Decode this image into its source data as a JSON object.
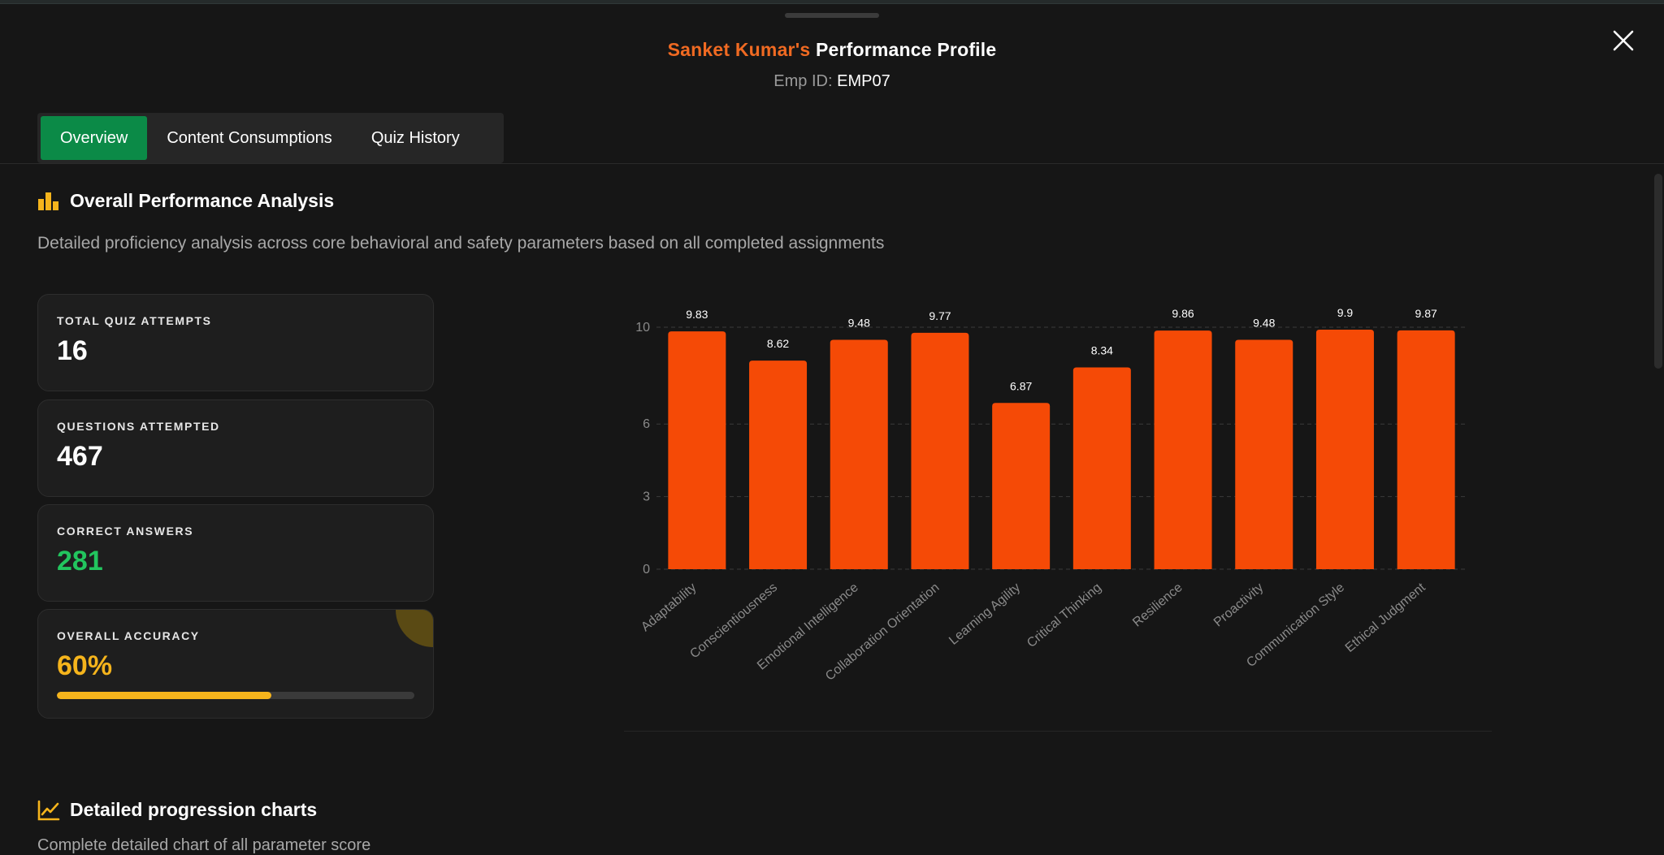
{
  "header": {
    "name": "Sanket Kumar's",
    "title_suffix": "Performance Profile",
    "emp_label": "Emp ID:",
    "emp_id": "EMP07"
  },
  "tabs": [
    "Overview",
    "Content Consumptions",
    "Quiz History"
  ],
  "active_tab": "Overview",
  "overview": {
    "heading": "Overall Performance Analysis",
    "description": "Detailed proficiency analysis across core behavioral and safety parameters based on all completed assignments"
  },
  "stats": {
    "total_quiz_attempts": {
      "label": "TOTAL QUIZ ATTEMPTS",
      "value": "16"
    },
    "questions_attempted": {
      "label": "QUESTIONS ATTEMPTED",
      "value": "467"
    },
    "correct_answers": {
      "label": "CORRECT ANSWERS",
      "value": "281"
    },
    "overall_accuracy": {
      "label": "OVERALL ACCURACY",
      "value": "60%",
      "progress_percent": 60
    }
  },
  "progression": {
    "heading": "Detailed progression charts",
    "description": "Complete detailed chart of all parameter score"
  },
  "colors": {
    "accent_orange": "#f06a22",
    "bar": "#f54a06",
    "active_tab": "#0b8a47",
    "correct": "#22c55e",
    "accuracy": "#f5b41c"
  },
  "chart_data": {
    "type": "bar",
    "categories": [
      "Adaptability",
      "Conscientiousness",
      "Emotional Intelligence",
      "Collaboration Orientation",
      "Learning Agility",
      "Critical Thinking",
      "Resilience",
      "Proactivity",
      "Communication Style",
      "Ethical Judgment"
    ],
    "values": [
      9.83,
      8.62,
      9.48,
      9.77,
      6.87,
      8.34,
      9.86,
      9.48,
      9.9,
      9.87
    ],
    "value_labels": [
      "9.83",
      "8.62",
      "9.48",
      "9.77",
      "6.87",
      "8.34",
      "9.86",
      "9.48",
      "9.9",
      "9.87"
    ],
    "yticks": [
      0,
      3,
      6,
      10
    ],
    "ylim": [
      0,
      10
    ],
    "grid": true,
    "title": "",
    "xlabel": "",
    "ylabel": ""
  }
}
